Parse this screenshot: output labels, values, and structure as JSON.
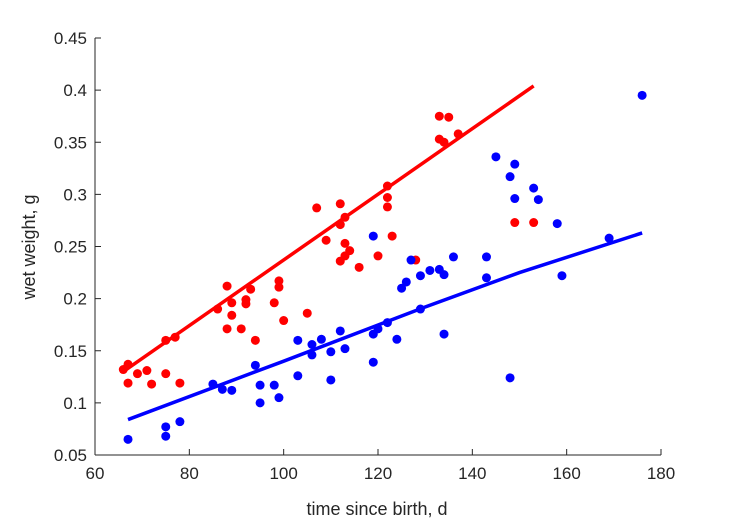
{
  "chart_data": {
    "type": "scatter",
    "title": "",
    "xlabel": "time since birth, d",
    "ylabel": "wet weight, g",
    "xlim": [
      60,
      180
    ],
    "ylim": [
      0.05,
      0.45
    ],
    "xticks": [
      "60",
      "80",
      "100",
      "120",
      "140",
      "160",
      "180"
    ],
    "yticks": [
      "0.05",
      "0.1",
      "0.15",
      "0.2",
      "0.25",
      "0.3",
      "0.35",
      "0.4",
      "0.45"
    ],
    "grid": false,
    "legend": "none",
    "series": [
      {
        "color": "#ff0000",
        "points": [
          [
            66,
            0.132
          ],
          [
            67,
            0.137
          ],
          [
            67,
            0.119
          ],
          [
            69,
            0.128
          ],
          [
            71,
            0.131
          ],
          [
            72,
            0.118
          ],
          [
            75,
            0.16
          ],
          [
            75,
            0.128
          ],
          [
            77,
            0.163
          ],
          [
            78,
            0.119
          ],
          [
            86,
            0.19
          ],
          [
            88,
            0.212
          ],
          [
            88,
            0.171
          ],
          [
            89,
            0.196
          ],
          [
            89,
            0.184
          ],
          [
            91,
            0.171
          ],
          [
            92,
            0.199
          ],
          [
            92,
            0.195
          ],
          [
            93,
            0.209
          ],
          [
            94,
            0.16
          ],
          [
            98,
            0.196
          ],
          [
            99,
            0.217
          ],
          [
            99,
            0.211
          ],
          [
            100,
            0.179
          ],
          [
            105,
            0.186
          ],
          [
            107,
            0.287
          ],
          [
            109,
            0.256
          ],
          [
            112,
            0.291
          ],
          [
            112,
            0.271
          ],
          [
            112,
            0.236
          ],
          [
            113,
            0.278
          ],
          [
            113,
            0.253
          ],
          [
            113,
            0.241
          ],
          [
            114,
            0.246
          ],
          [
            116,
            0.23
          ],
          [
            120,
            0.241
          ],
          [
            122,
            0.308
          ],
          [
            122,
            0.297
          ],
          [
            122,
            0.288
          ],
          [
            123,
            0.26
          ],
          [
            128,
            0.237
          ],
          [
            133,
            0.375
          ],
          [
            133,
            0.353
          ],
          [
            134,
            0.35
          ],
          [
            135,
            0.374
          ],
          [
            137,
            0.358
          ],
          [
            149,
            0.273
          ],
          [
            153,
            0.273
          ]
        ],
        "fit_line": [
          [
            66,
            0.13
          ],
          [
            153,
            0.404
          ]
        ]
      },
      {
        "color": "#0000ff",
        "points": [
          [
            67,
            0.065
          ],
          [
            75,
            0.077
          ],
          [
            75,
            0.068
          ],
          [
            78,
            0.082
          ],
          [
            85,
            0.118
          ],
          [
            87,
            0.113
          ],
          [
            89,
            0.112
          ],
          [
            94,
            0.136
          ],
          [
            95,
            0.117
          ],
          [
            95,
            0.1
          ],
          [
            98,
            0.117
          ],
          [
            99,
            0.105
          ],
          [
            103,
            0.16
          ],
          [
            103,
            0.126
          ],
          [
            106,
            0.156
          ],
          [
            106,
            0.146
          ],
          [
            108,
            0.161
          ],
          [
            110,
            0.149
          ],
          [
            110,
            0.122
          ],
          [
            112,
            0.169
          ],
          [
            113,
            0.152
          ],
          [
            119,
            0.26
          ],
          [
            119,
            0.166
          ],
          [
            119,
            0.139
          ],
          [
            120,
            0.171
          ],
          [
            122,
            0.177
          ],
          [
            124,
            0.161
          ],
          [
            125,
            0.21
          ],
          [
            126,
            0.216
          ],
          [
            127,
            0.237
          ],
          [
            129,
            0.222
          ],
          [
            129,
            0.19
          ],
          [
            131,
            0.227
          ],
          [
            133,
            0.228
          ],
          [
            134,
            0.223
          ],
          [
            134,
            0.166
          ],
          [
            136,
            0.24
          ],
          [
            143,
            0.24
          ],
          [
            143,
            0.22
          ],
          [
            145,
            0.336
          ],
          [
            148,
            0.317
          ],
          [
            148,
            0.124
          ],
          [
            149,
            0.329
          ],
          [
            149,
            0.296
          ],
          [
            153,
            0.306
          ],
          [
            154,
            0.295
          ],
          [
            158,
            0.272
          ],
          [
            159,
            0.222
          ],
          [
            169,
            0.258
          ],
          [
            176,
            0.395
          ]
        ],
        "fit_line": [
          [
            67,
            0.084
          ],
          [
            100,
            0.14
          ],
          [
            130,
            0.192
          ],
          [
            150,
            0.225
          ],
          [
            176,
            0.263
          ]
        ]
      }
    ]
  }
}
